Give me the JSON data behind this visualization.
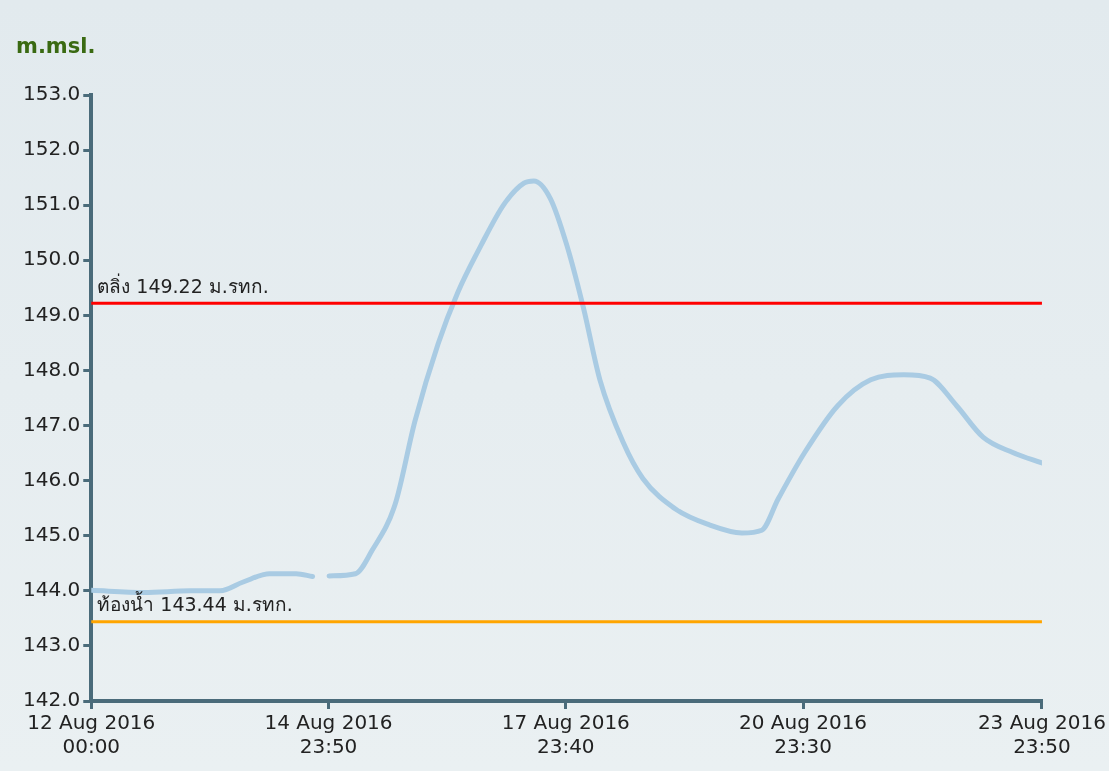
{
  "chart_data": {
    "type": "line",
    "ylabel": "m.msl.",
    "x": [
      "2016-08-12T00:00",
      "2016-08-12T16:00",
      "2016-08-13T06:00",
      "2016-08-13T15:00",
      "2016-08-13T22:00",
      "2016-08-14T06:00",
      "2016-08-14T14:00",
      "2016-08-14T19:00",
      "2016-08-14T21:00",
      "2016-08-15T00:00",
      "2016-08-15T08:00",
      "2016-08-15T13:00",
      "2016-08-15T20:00",
      "2016-08-16T02:00",
      "2016-08-16T09:00",
      "2016-08-16T15:00",
      "2016-08-16T22:00",
      "2016-08-17T05:00",
      "2016-08-17T11:00",
      "2016-08-17T14:00",
      "2016-08-17T19:00",
      "2016-08-18T00:00",
      "2016-08-18T05:00",
      "2016-08-18T10:00",
      "2016-08-18T17:00",
      "2016-08-18T23:00",
      "2016-08-19T09:00",
      "2016-08-19T19:00",
      "2016-08-20T05:00",
      "2016-08-20T11:00",
      "2016-08-20T16:00",
      "2016-08-21T00:00",
      "2016-08-21T10:00",
      "2016-08-21T20:00",
      "2016-08-22T06:00",
      "2016-08-22T14:00",
      "2016-08-22T22:00",
      "2016-08-23T06:00",
      "2016-08-23T15:00",
      "2016-08-23T23:50"
    ],
    "series": [
      {
        "color": "#a9cbe3",
        "values": [
          144.01,
          143.97,
          144.0,
          144.0,
          144.16,
          144.31,
          144.31,
          144.26,
          null,
          144.27,
          144.31,
          144.73,
          145.57,
          147.08,
          148.48,
          149.42,
          150.27,
          151.02,
          151.4,
          151.44,
          151.12,
          150.27,
          149.14,
          147.83,
          146.7,
          146.04,
          145.48,
          145.2,
          145.05,
          145.1,
          145.67,
          146.51,
          147.36,
          147.83,
          147.92,
          147.86,
          147.36,
          146.79,
          146.51,
          146.32
        ]
      }
    ],
    "xlim": [
      "2016-08-12T00:00",
      "2016-08-23T23:50"
    ],
    "xticks": [
      {
        "value": "2016-08-12T00:00",
        "label": "12 Aug 2016 00:00"
      },
      {
        "value": "2016-08-14T23:50",
        "label": "14 Aug 2016 23:50"
      },
      {
        "value": "2016-08-17T23:40",
        "label": "17 Aug 2016 23:40"
      },
      {
        "value": "2016-08-20T23:30",
        "label": "20 Aug 2016 23:30"
      },
      {
        "value": "2016-08-23T23:50",
        "label": "23 Aug 2016 23:50"
      }
    ],
    "ylim": [
      142,
      153
    ],
    "yticks": [
      {
        "value": 142,
        "label": "142.0"
      },
      {
        "value": 143,
        "label": "143.0"
      },
      {
        "value": 144,
        "label": "144.0"
      },
      {
        "value": 145,
        "label": "145.0"
      },
      {
        "value": 146,
        "label": "146.0"
      },
      {
        "value": 147,
        "label": "147.0"
      },
      {
        "value": 148,
        "label": "148.0"
      },
      {
        "value": 149,
        "label": "149.0"
      },
      {
        "value": 150,
        "label": "150.0"
      },
      {
        "value": 151,
        "label": "151.0"
      },
      {
        "value": 152,
        "label": "152.0"
      },
      {
        "value": 153,
        "label": "153.0"
      }
    ],
    "ref_lines": [
      {
        "axis": "y",
        "value": 149.22,
        "label": "ตลิ่ง 149.22 ม.รทก.",
        "color": "#ff0000"
      },
      {
        "axis": "y",
        "value": 143.44,
        "label": "ท้องน้ำ 143.44 ม.รทก.",
        "color": "#ffa500"
      }
    ],
    "grid": false
  }
}
